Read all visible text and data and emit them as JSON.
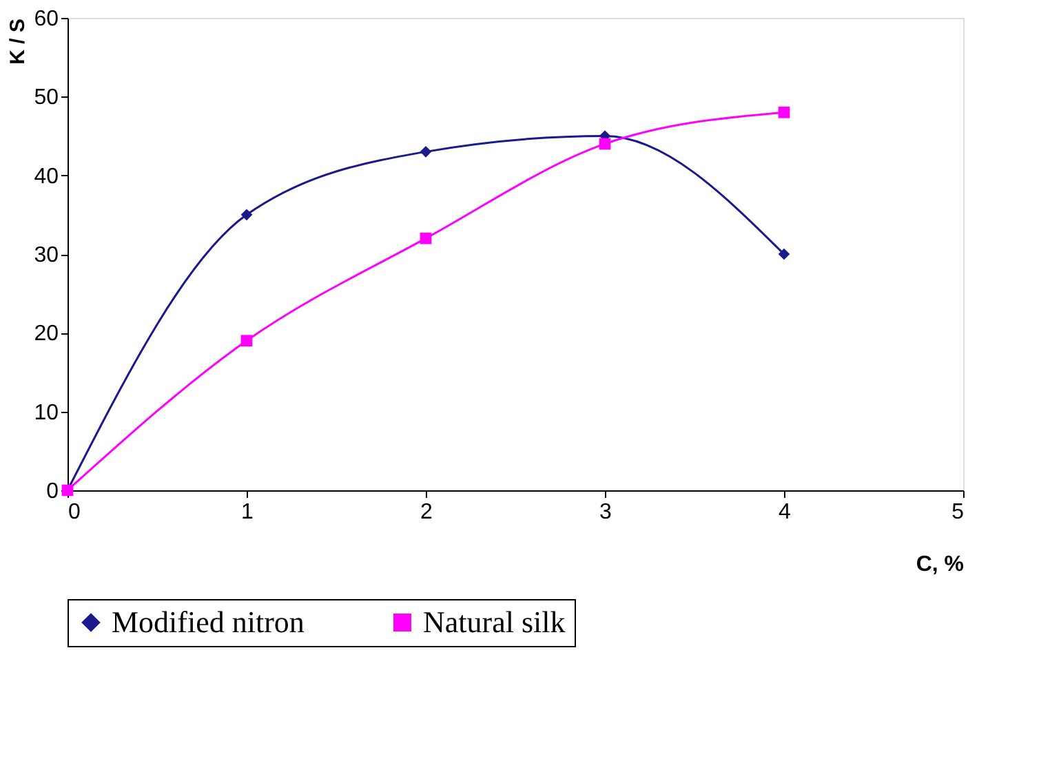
{
  "chart_data": {
    "type": "line",
    "xlabel": "C, %",
    "ylabel": "K / S",
    "x": [
      0,
      1,
      2,
      3,
      4
    ],
    "series": [
      {
        "name": "Modified nitron",
        "color": "#1a1a8c",
        "marker": "diamond",
        "values": [
          0,
          35,
          43,
          45,
          30
        ]
      },
      {
        "name": "Natural silk",
        "color": "#ff00ff",
        "marker": "square",
        "values": [
          0,
          19,
          32,
          44,
          48
        ]
      }
    ],
    "xlim": [
      0,
      5
    ],
    "xticks": [
      0,
      1,
      2,
      3,
      4,
      5
    ],
    "ylim": [
      0,
      60
    ],
    "yticks": [
      0,
      10,
      20,
      30,
      40,
      50,
      60
    ],
    "grid": false,
    "legend": "bottom",
    "line_style": "solid"
  }
}
